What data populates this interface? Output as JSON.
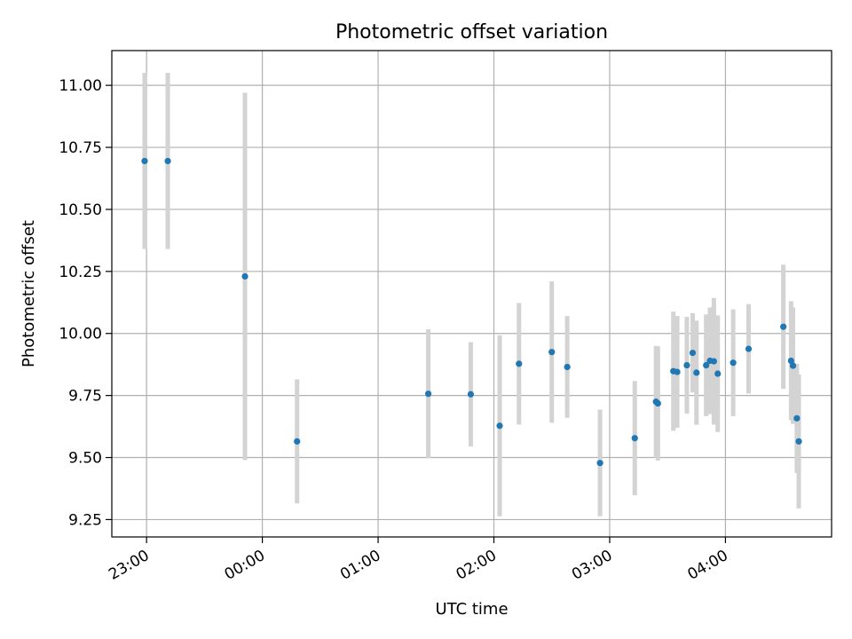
{
  "chart_data": {
    "type": "scatter",
    "title": "Photometric offset variation",
    "xlabel": "UTC time",
    "ylabel": "Photometric offset",
    "xlim": [
      "22:42",
      "04:55"
    ],
    "ylim": [
      9.18,
      11.14
    ],
    "x_ticks": [
      "23:00",
      "00:00",
      "01:00",
      "02:00",
      "03:00",
      "04:00"
    ],
    "y_ticks": [
      9.25,
      9.5,
      9.75,
      10.0,
      10.25,
      10.5,
      10.75,
      11.0
    ],
    "y_tick_labels": [
      "9.25",
      "9.50",
      "9.75",
      "10.00",
      "10.25",
      "10.50",
      "10.75",
      "11.00"
    ],
    "grid": true,
    "colors": {
      "marker": "#1f77b4",
      "error_bar": "#d3d3d3",
      "grid": "#b0b0b0"
    },
    "points": [
      {
        "x": "22:59",
        "y": 10.695,
        "err": 0.355
      },
      {
        "x": "23:11",
        "y": 10.695,
        "err": 0.355
      },
      {
        "x": "23:51",
        "y": 10.23,
        "err": 0.74
      },
      {
        "x": "00:18",
        "y": 9.565,
        "err": 0.25
      },
      {
        "x": "01:26",
        "y": 9.757,
        "err": 0.26
      },
      {
        "x": "01:48",
        "y": 9.755,
        "err": 0.21
      },
      {
        "x": "02:03",
        "y": 9.628,
        "err": 0.365
      },
      {
        "x": "02:13",
        "y": 9.878,
        "err": 0.245
      },
      {
        "x": "02:30",
        "y": 9.925,
        "err": 0.285
      },
      {
        "x": "02:38",
        "y": 9.865,
        "err": 0.205
      },
      {
        "x": "02:55",
        "y": 9.478,
        "err": 0.215
      },
      {
        "x": "03:13",
        "y": 9.578,
        "err": 0.23
      },
      {
        "x": "03:24",
        "y": 9.725,
        "err": 0.225
      },
      {
        "x": "03:25",
        "y": 9.718,
        "err": 0.23
      },
      {
        "x": "03:33",
        "y": 9.848,
        "err": 0.24
      },
      {
        "x": "03:35",
        "y": 9.845,
        "err": 0.225
      },
      {
        "x": "03:40",
        "y": 9.872,
        "err": 0.195
      },
      {
        "x": "03:43",
        "y": 9.922,
        "err": 0.16
      },
      {
        "x": "03:45",
        "y": 9.842,
        "err": 0.21
      },
      {
        "x": "03:50",
        "y": 9.872,
        "err": 0.205
      },
      {
        "x": "03:52",
        "y": 9.89,
        "err": 0.215
      },
      {
        "x": "03:54",
        "y": 9.888,
        "err": 0.255
      },
      {
        "x": "03:56",
        "y": 9.838,
        "err": 0.235
      },
      {
        "x": "04:04",
        "y": 9.882,
        "err": 0.215
      },
      {
        "x": "04:12",
        "y": 9.938,
        "err": 0.18
      },
      {
        "x": "04:30",
        "y": 10.027,
        "err": 0.25
      },
      {
        "x": "04:34",
        "y": 9.89,
        "err": 0.24
      },
      {
        "x": "04:35",
        "y": 9.87,
        "err": 0.235
      },
      {
        "x": "04:37",
        "y": 9.658,
        "err": 0.22
      },
      {
        "x": "04:38",
        "y": 9.565,
        "err": 0.27
      }
    ]
  }
}
